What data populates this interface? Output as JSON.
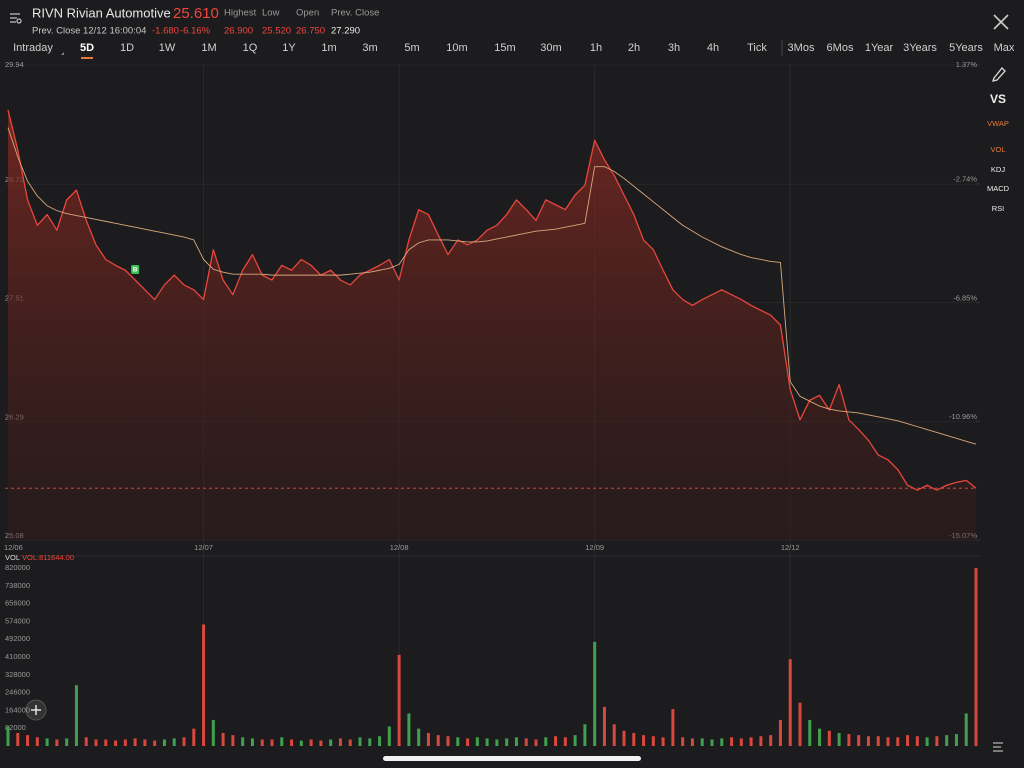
{
  "header": {
    "symbol_name": "RIVN Rivian Automotive",
    "price": "25.610",
    "prev_close_time": "Prev. Close 12/12 16:00:04",
    "change": "-1.680",
    "change_pct": "-6.16%",
    "stats": [
      {
        "label": "Highest",
        "value": "26.900"
      },
      {
        "label": "Low",
        "value": "25.520"
      },
      {
        "label": "Open",
        "value": "26.750"
      },
      {
        "label": "Prev. Close",
        "value": "27.290"
      }
    ]
  },
  "tabs": {
    "items": [
      "Intraday",
      "5D",
      "1D",
      "1W",
      "1M",
      "1Q",
      "1Y",
      "1m",
      "3m",
      "5m",
      "10m",
      "15m",
      "30m",
      "1h",
      "2h",
      "3h",
      "4h",
      "Tick",
      "3Mos",
      "6Mos",
      "1Year",
      "3Years",
      "5Years",
      "Max"
    ],
    "selected": 1
  },
  "side_panel": {
    "vs": "VS",
    "indicators": [
      {
        "label": "VWAP",
        "active": true
      },
      {
        "label": "VOL",
        "active": true
      },
      {
        "label": "KDJ",
        "active": false
      },
      {
        "label": "MACD",
        "active": false
      },
      {
        "label": "RSI",
        "active": false
      }
    ]
  },
  "chart_data": {
    "type": "line",
    "xlim": [
      0,
      99
    ],
    "xticks": [
      {
        "value": 0,
        "label": "12/06"
      },
      {
        "value": 20,
        "label": "12/07"
      },
      {
        "value": 40,
        "label": "12/08"
      },
      {
        "value": 60,
        "label": "12/09"
      },
      {
        "value": 80,
        "label": "12/12"
      }
    ],
    "ylim": [
      25.08,
      29.94
    ],
    "yticks": [
      29.94,
      28.72,
      27.51,
      26.29,
      25.08
    ],
    "y2lim": [
      -15.07,
      1.37
    ],
    "y2ticks": [
      {
        "value": 1.37,
        "label": "1.37%"
      },
      {
        "value": -2.74,
        "label": "-2.74%"
      },
      {
        "value": -6.85,
        "label": "-6.85%"
      },
      {
        "value": -10.96,
        "label": "-10.96%"
      },
      {
        "value": -15.07,
        "label": "-15.07%"
      }
    ],
    "series": [
      {
        "color": "#e8463c",
        "values": [
          29.48,
          29.07,
          28.56,
          28.3,
          28.41,
          28.25,
          28.56,
          28.66,
          28.35,
          28.1,
          27.95,
          27.89,
          27.84,
          27.74,
          27.64,
          27.54,
          27.69,
          27.79,
          27.69,
          27.64,
          27.54,
          28.05,
          27.74,
          27.59,
          27.84,
          28.0,
          27.79,
          27.74,
          27.89,
          27.84,
          27.95,
          27.89,
          27.79,
          27.84,
          27.74,
          27.69,
          27.79,
          27.84,
          27.89,
          27.95,
          27.74,
          28.15,
          28.46,
          28.41,
          28.2,
          28.0,
          28.15,
          28.1,
          28.15,
          28.25,
          28.3,
          28.41,
          28.56,
          28.46,
          28.35,
          28.56,
          28.51,
          28.46,
          28.61,
          28.71,
          29.17,
          28.97,
          28.81,
          28.61,
          28.41,
          28.15,
          28.05,
          27.84,
          27.64,
          27.54,
          27.48,
          27.54,
          27.59,
          27.64,
          27.59,
          27.54,
          27.48,
          27.43,
          27.38,
          27.28,
          26.62,
          26.31,
          26.51,
          26.56,
          26.41,
          26.67,
          26.31,
          26.21,
          26.1,
          25.95,
          25.9,
          25.8,
          25.64,
          25.59,
          25.64,
          25.59,
          25.64,
          25.67,
          25.69,
          25.61
        ]
      },
      {
        "color": "#d9a77a",
        "values": [
          29.3,
          29.0,
          28.75,
          28.6,
          28.5,
          28.45,
          28.42,
          28.4,
          28.38,
          28.36,
          28.34,
          28.32,
          28.3,
          28.28,
          28.26,
          28.24,
          28.22,
          28.2,
          28.18,
          28.15,
          27.95,
          27.85,
          27.82,
          27.8,
          27.8,
          27.8,
          27.8,
          27.79,
          27.79,
          27.79,
          27.79,
          27.79,
          27.79,
          27.79,
          27.79,
          27.8,
          27.81,
          27.82,
          27.84,
          27.86,
          27.9,
          28.05,
          28.12,
          28.15,
          28.15,
          28.15,
          28.14,
          28.13,
          28.13,
          28.14,
          28.16,
          28.18,
          28.2,
          28.22,
          28.24,
          28.25,
          28.26,
          28.28,
          28.3,
          28.32,
          28.9,
          28.9,
          28.85,
          28.78,
          28.7,
          28.62,
          28.54,
          28.46,
          28.38,
          28.3,
          28.24,
          28.18,
          28.13,
          28.08,
          28.04,
          28.0,
          27.97,
          27.95,
          27.93,
          27.92,
          26.7,
          26.55,
          26.5,
          26.45,
          26.42,
          26.4,
          26.39,
          26.38,
          26.36,
          26.34,
          26.32,
          26.3,
          26.27,
          26.24,
          26.21,
          26.18,
          26.15,
          26.12,
          26.09,
          26.06
        ]
      }
    ],
    "markers": [
      {
        "index": 13,
        "label": "B",
        "color": "#3fbf5a"
      }
    ],
    "volume": {
      "label": "VOL",
      "value_label": "VOL:811644.00",
      "up_color": "#3fa04f",
      "down_color": "#d9473d",
      "ylim": [
        0,
        820000
      ],
      "yticks": [
        820000,
        738000,
        656000,
        574000,
        492000,
        410000,
        328000,
        246000,
        164000,
        82000
      ],
      "values": [
        90000,
        60000,
        50000,
        40000,
        35000,
        30000,
        35000,
        280000,
        40000,
        30000,
        30000,
        25000,
        30000,
        35000,
        30000,
        25000,
        30000,
        35000,
        40000,
        80000,
        560000,
        120000,
        60000,
        50000,
        40000,
        35000,
        30000,
        30000,
        40000,
        30000,
        25000,
        30000,
        25000,
        30000,
        35000,
        30000,
        40000,
        35000,
        45000,
        90000,
        420000,
        150000,
        80000,
        60000,
        50000,
        45000,
        40000,
        35000,
        40000,
        35000,
        30000,
        35000,
        40000,
        35000,
        30000,
        40000,
        45000,
        40000,
        50000,
        100000,
        480000,
        180000,
        100000,
        70000,
        60000,
        50000,
        45000,
        40000,
        170000,
        40000,
        35000,
        35000,
        30000,
        35000,
        40000,
        35000,
        40000,
        45000,
        50000,
        120000,
        400000,
        200000,
        120000,
        80000,
        70000,
        60000,
        55000,
        50000,
        45000,
        45000,
        40000,
        40000,
        50000,
        45000,
        40000,
        45000,
        50000,
        55000,
        150000,
        820000
      ]
    }
  }
}
